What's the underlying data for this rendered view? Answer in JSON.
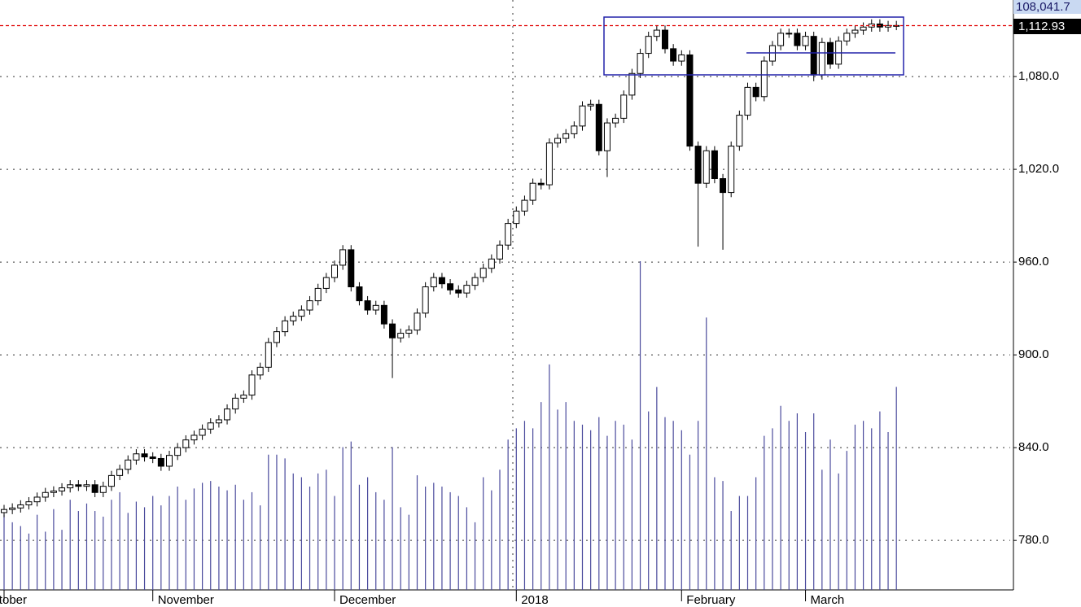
{
  "chart_data": {
    "type": "candlestick",
    "categories": [
      "October",
      null,
      null,
      null,
      null,
      null,
      null,
      null,
      null,
      null,
      null,
      null,
      null,
      null,
      null,
      null,
      null,
      null,
      "November",
      null,
      null,
      null,
      null,
      null,
      null,
      null,
      null,
      null,
      null,
      null,
      null,
      null,
      null,
      null,
      null,
      null,
      null,
      null,
      null,
      null,
      "December",
      null,
      null,
      null,
      null,
      null,
      null,
      null,
      null,
      null,
      null,
      null,
      null,
      null,
      null,
      null,
      null,
      null,
      null,
      null,
      null,
      null,
      "2018",
      null,
      null,
      null,
      null,
      null,
      null,
      null,
      null,
      null,
      null,
      null,
      null,
      null,
      null,
      null,
      null,
      null,
      null,
      null,
      "February",
      null,
      null,
      null,
      null,
      null,
      null,
      null,
      null,
      null,
      null,
      null,
      null,
      null,
      null,
      "March",
      null,
      null,
      null,
      null,
      null,
      null,
      null,
      null,
      null,
      null,
      null
    ],
    "open": [
      798,
      800,
      801,
      803,
      805,
      808,
      811,
      812,
      814,
      816,
      815,
      816,
      811,
      815,
      822,
      826,
      832,
      836,
      834,
      833,
      828,
      835,
      840,
      845,
      848,
      852,
      856,
      858,
      865,
      872,
      874,
      887,
      892,
      908,
      915,
      922,
      925,
      929,
      935,
      943,
      950,
      958,
      968,
      944,
      935,
      929,
      932,
      920,
      911,
      914,
      916,
      927,
      944,
      950,
      946,
      942,
      940,
      945,
      950,
      956,
      962,
      971,
      985,
      993,
      1000,
      1011,
      1010,
      1037,
      1040,
      1043,
      1048,
      1061,
      1062,
      1032,
      1050,
      1053,
      1068,
      1082,
      1095,
      1106,
      1110,
      1098,
      1090,
      1094,
      1035,
      1011,
      1032,
      1014,
      1005,
      1035,
      1055,
      1073,
      1067,
      1090,
      1100,
      1108,
      1108,
      1100,
      1106,
      1081,
      1102,
      1088,
      1103,
      1108,
      1110,
      1112,
      1114,
      1112,
      1113
    ],
    "high": [
      803,
      804,
      806,
      808,
      811,
      814,
      815,
      817,
      819,
      819,
      819,
      819,
      818,
      825,
      829,
      835,
      839,
      839,
      837,
      836,
      838,
      843,
      848,
      851,
      855,
      859,
      861,
      868,
      875,
      877,
      890,
      895,
      911,
      918,
      925,
      928,
      932,
      938,
      946,
      953,
      961,
      971,
      971,
      947,
      938,
      935,
      935,
      923,
      917,
      919,
      930,
      947,
      953,
      953,
      949,
      945,
      948,
      953,
      959,
      965,
      974,
      988,
      996,
      1003,
      1014,
      1014,
      1040,
      1043,
      1046,
      1051,
      1064,
      1065,
      1065,
      1053,
      1056,
      1071,
      1085,
      1098,
      1109,
      1113,
      1113,
      1101,
      1097,
      1097,
      1038,
      1035,
      1035,
      1017,
      1038,
      1058,
      1076,
      1076,
      1093,
      1103,
      1111,
      1111,
      1111,
      1109,
      1109,
      1105,
      1105,
      1106,
      1111,
      1113,
      1115,
      1117,
      1117,
      1116,
      1116
    ],
    "low": [
      795,
      797,
      798,
      800,
      802,
      805,
      808,
      809,
      811,
      812,
      812,
      808,
      808,
      812,
      819,
      823,
      829,
      831,
      830,
      825,
      825,
      832,
      837,
      842,
      845,
      849,
      853,
      855,
      862,
      869,
      871,
      884,
      889,
      905,
      912,
      919,
      922,
      926,
      932,
      940,
      947,
      955,
      941,
      932,
      926,
      926,
      917,
      885,
      908,
      911,
      913,
      924,
      941,
      943,
      939,
      937,
      937,
      942,
      947,
      953,
      959,
      968,
      982,
      990,
      997,
      1007,
      1007,
      1034,
      1037,
      1040,
      1045,
      1058,
      1029,
      1015,
      1047,
      1050,
      1065,
      1079,
      1092,
      1103,
      1095,
      1087,
      1087,
      1032,
      970,
      1008,
      1011,
      968,
      1002,
      1032,
      1052,
      1064,
      1064,
      1087,
      1097,
      1105,
      1097,
      1097,
      1077,
      1078,
      1085,
      1085,
      1100,
      1105,
      1107,
      1109,
      1109,
      1109,
      1110
    ],
    "close": [
      800,
      801,
      803,
      805,
      808,
      811,
      812,
      814,
      816,
      815,
      816,
      811,
      815,
      822,
      826,
      832,
      836,
      834,
      833,
      828,
      835,
      840,
      845,
      848,
      852,
      856,
      858,
      865,
      872,
      874,
      887,
      892,
      908,
      915,
      922,
      925,
      929,
      935,
      943,
      950,
      958,
      968,
      944,
      935,
      929,
      932,
      920,
      911,
      914,
      916,
      927,
      944,
      950,
      946,
      942,
      940,
      945,
      950,
      956,
      962,
      971,
      985,
      993,
      1000,
      1011,
      1010,
      1037,
      1040,
      1043,
      1048,
      1061,
      1062,
      1032,
      1050,
      1053,
      1068,
      1082,
      1095,
      1106,
      1110,
      1098,
      1090,
      1094,
      1035,
      1011,
      1032,
      1014,
      1005,
      1035,
      1055,
      1073,
      1067,
      1090,
      1100,
      1108,
      1108,
      1100,
      1106,
      1081,
      1102,
      1088,
      1103,
      1108,
      1110,
      1112,
      1114,
      1112,
      1113,
      1112.93
    ],
    "volume": [
      40000,
      36000,
      34000,
      30000,
      40000,
      31000,
      43000,
      32000,
      48000,
      42000,
      46000,
      42000,
      39000,
      48000,
      52000,
      41000,
      47000,
      44000,
      50000,
      45000,
      50000,
      55000,
      48000,
      54000,
      57000,
      58000,
      55000,
      53000,
      56000,
      48000,
      52000,
      45000,
      72000,
      72000,
      70000,
      62000,
      60000,
      55000,
      62000,
      64000,
      50000,
      76000,
      79000,
      56000,
      60000,
      52000,
      48000,
      76000,
      44000,
      40000,
      61000,
      55000,
      57000,
      55000,
      52000,
      50000,
      44000,
      36000,
      60000,
      53000,
      64000,
      80000,
      86000,
      90000,
      86000,
      100000,
      120000,
      96000,
      100000,
      90000,
      88000,
      85000,
      92000,
      82000,
      90000,
      88000,
      80000,
      175000,
      95000,
      108000,
      92000,
      90000,
      85000,
      72000,
      90000,
      145000,
      60000,
      58000,
      42000,
      50000,
      50000,
      60000,
      82000,
      86000,
      98000,
      90000,
      94000,
      84000,
      94000,
      64000,
      80000,
      62000,
      74000,
      88000,
      90000,
      86000,
      95000,
      84000,
      108041.7
    ],
    "last_labels": {
      "volume": "108,041.7",
      "close": "1,112.93"
    },
    "ylim": [
      748,
      1129.5
    ],
    "yticks": [
      {
        "value": 780,
        "label": "780.0"
      },
      {
        "value": 840,
        "label": "840.0"
      },
      {
        "value": 900,
        "label": "900.0"
      },
      {
        "value": 960,
        "label": "960.0"
      },
      {
        "value": 1020,
        "label": "1,020.0"
      },
      {
        "value": 1080,
        "label": "1,080.0"
      }
    ],
    "vlim": [
      0,
      314000
    ],
    "grid": true,
    "up_color": "#ffffff",
    "down_color": "#000000",
    "volume_color": "#4a4a9c",
    "last_line_color": "#e00000"
  }
}
